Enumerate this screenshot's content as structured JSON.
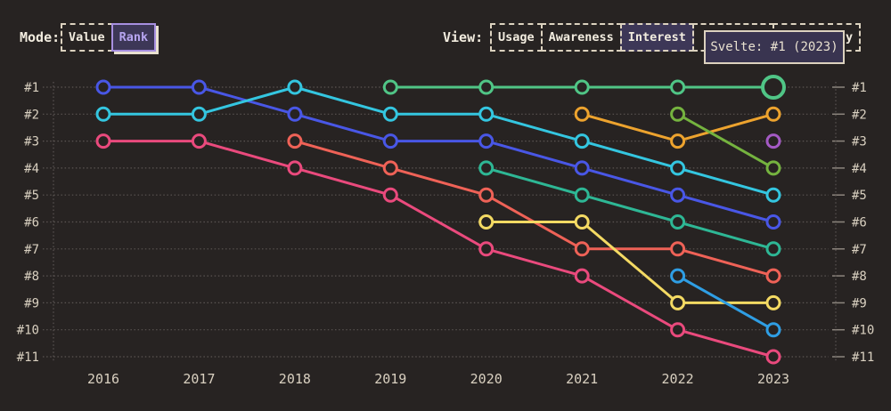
{
  "colors": {
    "background": "#272322",
    "gridline": "#5b5553",
    "tick": "#8d867e",
    "axis_text": "#d9d0c0",
    "header_text": "#f2ecdf",
    "accent_purple": "#b7a5f0",
    "accent_border": "#a78fe0",
    "selected_fill": "#3d3757",
    "tooltip_bg": "#393450",
    "tooltip_border": "#dcd2bf"
  },
  "mode_toggle": {
    "label": "Mode:",
    "options": [
      {
        "label": "Value",
        "selected": false
      },
      {
        "label": "Rank",
        "selected": true
      }
    ]
  },
  "view_toggle": {
    "label": "View:",
    "options": [
      {
        "label": "Usage",
        "selected": false
      },
      {
        "label": "Awareness",
        "selected": false
      },
      {
        "label": "Interest",
        "selected": true
      },
      {
        "label": "",
        "selected": false
      },
      {
        "label": "Positivity",
        "selected": false
      }
    ]
  },
  "tooltip": {
    "text": "Svelte: #1 (2023)"
  },
  "chart_data": {
    "type": "line",
    "subtype": "bump-rank-chart",
    "title": "",
    "x": [
      2016,
      2017,
      2018,
      2019,
      2020,
      2021,
      2022,
      2023
    ],
    "y_labels": [
      "#1",
      "#2",
      "#3",
      "#4",
      "#5",
      "#6",
      "#7",
      "#8",
      "#9",
      "#10",
      "#11"
    ],
    "ylim": [
      1,
      11
    ],
    "y_inverted": true,
    "grid": "dotted-horizontal",
    "legend": "none",
    "highlight": {
      "series": "green",
      "year": 2023,
      "rank": 1,
      "tooltip": "Svelte: #1 (2023)"
    },
    "series": [
      {
        "name": "royal-blue",
        "color": "#4957e6",
        "ranks": [
          1,
          1,
          2,
          3,
          3,
          4,
          5,
          6
        ]
      },
      {
        "name": "cyan",
        "color": "#34c6e0",
        "ranks": [
          2,
          2,
          1,
          2,
          2,
          3,
          4,
          5
        ]
      },
      {
        "name": "magenta-pink",
        "color": "#ea4a7d",
        "ranks": [
          3,
          3,
          4,
          5,
          7,
          8,
          10,
          11
        ]
      },
      {
        "name": "salmon",
        "color": "#ef6257",
        "ranks": [
          null,
          null,
          3,
          4,
          5,
          7,
          7,
          8
        ]
      },
      {
        "name": "green",
        "label": "Svelte",
        "color": "#50c586",
        "ranks": [
          null,
          null,
          null,
          1,
          1,
          1,
          1,
          1
        ],
        "highlight_last": true
      },
      {
        "name": "teal",
        "color": "#2eb795",
        "ranks": [
          null,
          null,
          null,
          null,
          4,
          5,
          6,
          7
        ]
      },
      {
        "name": "yellow",
        "color": "#f4da63",
        "ranks": [
          null,
          null,
          null,
          null,
          6,
          6,
          9,
          9
        ]
      },
      {
        "name": "amber",
        "color": "#eda32e",
        "ranks": [
          null,
          null,
          null,
          null,
          null,
          2,
          3,
          2
        ]
      },
      {
        "name": "lime",
        "color": "#75b33f",
        "ranks": [
          null,
          null,
          null,
          null,
          null,
          null,
          2,
          4
        ]
      },
      {
        "name": "sky-blue",
        "color": "#2f9ee4",
        "ranks": [
          null,
          null,
          null,
          null,
          null,
          null,
          8,
          10
        ]
      },
      {
        "name": "purple",
        "color": "#a45ac4",
        "ranks": [
          null,
          null,
          null,
          null,
          null,
          null,
          null,
          3
        ]
      }
    ]
  }
}
